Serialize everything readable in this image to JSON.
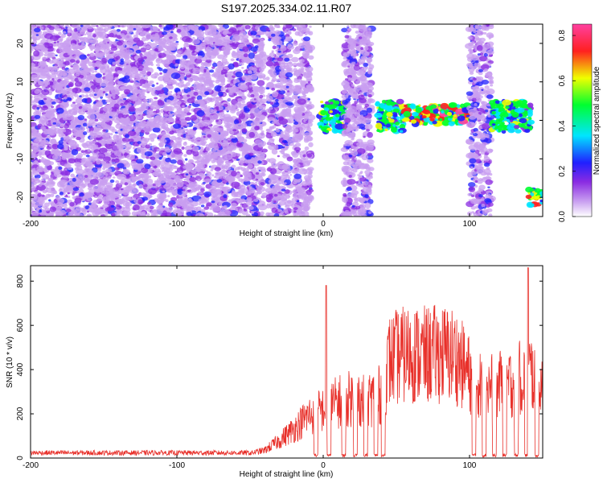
{
  "chart_data": [
    {
      "type": "heatmap",
      "title": "S197.2025.334.02.11.R07",
      "xlabel": "Height of straight line (km)",
      "ylabel": "Frequency (Hz)",
      "xlim": [
        -200,
        150
      ],
      "ylim": [
        -25,
        25
      ],
      "xticks": [
        -200,
        -100,
        0,
        100
      ],
      "yticks": [
        -20,
        -10,
        0,
        10,
        20
      ],
      "colorbar": {
        "label": "Normalized spectral amplitude",
        "range": [
          0.0,
          0.85
        ],
        "ticks": [
          0.0,
          0.2,
          0.4,
          0.6,
          0.8
        ],
        "colormap": [
          "#ffffff",
          "#8a2be2",
          "#0000ff",
          "#00ffff",
          "#00ff00",
          "#ffff00",
          "#ff0000",
          "#ff00ff"
        ]
      },
      "features": [
        {
          "x": [
            -200,
            -40
          ],
          "freq_range": [
            -25,
            25
          ],
          "level": 0.1,
          "pattern": "broadband-noise"
        },
        {
          "x": [
            -38,
            -22
          ],
          "freq_range": [
            -25,
            25
          ],
          "level": 0.12,
          "pattern": "broadband-noise"
        },
        {
          "x": [
            -20,
            -8
          ],
          "freq_range": [
            -25,
            25
          ],
          "level": 0.1,
          "pattern": "broadband-noise"
        },
        {
          "x": [
            -2,
            15
          ],
          "freq_range": [
            -3,
            5
          ],
          "level": 0.45,
          "pattern": "narrowband"
        },
        {
          "x": [
            14,
            33
          ],
          "freq_range": [
            -25,
            25
          ],
          "level": 0.1,
          "pattern": "broadband-noise"
        },
        {
          "x": [
            37,
            55
          ],
          "freq_range": [
            -3,
            5
          ],
          "level": 0.45,
          "pattern": "narrowband"
        },
        {
          "x": [
            55,
            100
          ],
          "freq_range": [
            -1,
            4
          ],
          "level": 0.65,
          "pattern": "narrowband"
        },
        {
          "x": [
            100,
            115
          ],
          "freq_range": [
            -25,
            25
          ],
          "level": 0.12,
          "pattern": "broadband-noise"
        },
        {
          "x": [
            115,
            142
          ],
          "freq_range": [
            -3,
            5
          ],
          "level": 0.45,
          "pattern": "narrowband"
        },
        {
          "x": [
            140,
            150
          ],
          "freq_range": [
            -22,
            -18
          ],
          "level": 0.55,
          "pattern": "narrowband"
        }
      ]
    },
    {
      "type": "line",
      "xlabel": "Height of straight line (km)",
      "ylabel": "SNR (10 * v/v)",
      "xlim": [
        -200,
        150
      ],
      "ylim": [
        0,
        870
      ],
      "xticks": [
        -200,
        -100,
        0,
        100
      ],
      "yticks": [
        0,
        200,
        400,
        600,
        800
      ],
      "color": "#e8302a",
      "envelope": {
        "x": [
          -200,
          -100,
          -50,
          -40,
          -30,
          -20,
          -10,
          0,
          10,
          20,
          30,
          40,
          45,
          50,
          60,
          70,
          80,
          90,
          100,
          110,
          120,
          130,
          140,
          150
        ],
        "y": [
          25,
          25,
          25,
          40,
          90,
          150,
          220,
          250,
          290,
          310,
          300,
          330,
          500,
          520,
          540,
          530,
          540,
          530,
          430,
          360,
          380,
          390,
          450,
          400
        ]
      },
      "peaks": [
        {
          "x": 2,
          "y": 780
        },
        {
          "x": 140,
          "y": 860
        }
      ],
      "dips": [
        -5,
        4,
        14,
        22,
        29,
        36,
        41,
        103,
        110,
        117,
        124,
        132,
        139,
        146
      ]
    }
  ]
}
